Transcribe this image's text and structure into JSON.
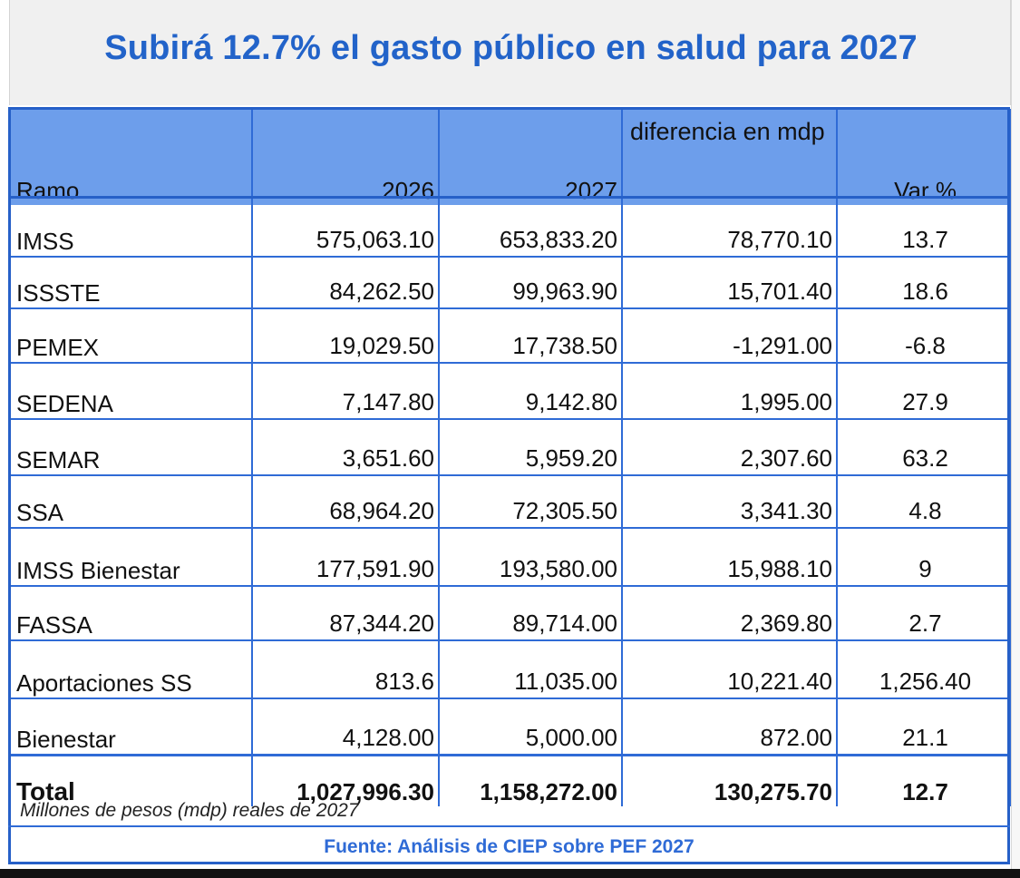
{
  "title": "Subirá 12.7% el gasto público en salud para 2027",
  "colors": {
    "title": "#2263c9",
    "header_bg": "#6d9eeb",
    "border": "#2f6bd6",
    "source": "#2f6bd6"
  },
  "table": {
    "headers": {
      "ramo": "Ramo",
      "y2026": "2026",
      "y2027": "2027",
      "diff": "diferencia en mdp",
      "var": "Var %"
    },
    "rows": [
      {
        "ramo": "IMSS",
        "y2026": "575,063.10",
        "y2027": "653,833.20",
        "diff": "78,770.10",
        "var": "13.7"
      },
      {
        "ramo": "ISSSTE",
        "y2026": "84,262.50",
        "y2027": "99,963.90",
        "diff": "15,701.40",
        "var": "18.6"
      },
      {
        "ramo": "PEMEX",
        "y2026": "19,029.50",
        "y2027": "17,738.50",
        "diff": "-1,291.00",
        "var": "-6.8"
      },
      {
        "ramo": "SEDENA",
        "y2026": "7,147.80",
        "y2027": "9,142.80",
        "diff": "1,995.00",
        "var": "27.9"
      },
      {
        "ramo": "SEMAR",
        "y2026": "3,651.60",
        "y2027": "5,959.20",
        "diff": "2,307.60",
        "var": "63.2"
      },
      {
        "ramo": "SSA",
        "y2026": "68,964.20",
        "y2027": "72,305.50",
        "diff": "3,341.30",
        "var": "4.8"
      },
      {
        "ramo": "IMSS Bienestar",
        "y2026": "177,591.90",
        "y2027": "193,580.00",
        "diff": "15,988.10",
        "var": "9"
      },
      {
        "ramo": "FASSA",
        "y2026": "87,344.20",
        "y2027": "89,714.00",
        "diff": "2,369.80",
        "var": "2.7"
      },
      {
        "ramo": "Aportaciones SS",
        "y2026": "813.6",
        "y2027": "11,035.00",
        "diff": "10,221.40",
        "var": "1,256.40"
      },
      {
        "ramo": "Bienestar",
        "y2026": "4,128.00",
        "y2027": "5,000.00",
        "diff": "872.00",
        "var": "21.1"
      }
    ],
    "total": {
      "ramo": "Total",
      "y2026": "1,027,996.30",
      "y2027": "1,158,272.00",
      "diff": "130,275.70",
      "var": "12.7"
    }
  },
  "note": "Millones de pesos (mdp) reales de 2027",
  "source": "Fuente: Análisis de CIEP sobre PEF 2027"
}
